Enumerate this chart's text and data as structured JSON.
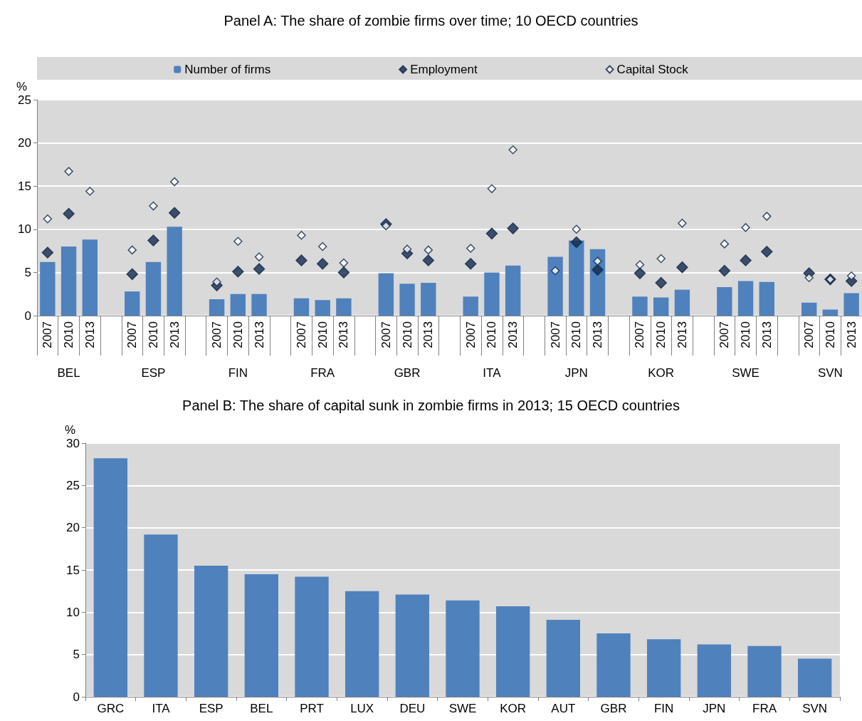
{
  "chart_data": [
    {
      "type": "bar",
      "title": "Panel A: The share of zombie firms over time; 10 OECD countries",
      "ylabel": "%",
      "categories": [
        "2007",
        "2010",
        "2013",
        null,
        "2007",
        "2010",
        "2013",
        null,
        "2007",
        "2010",
        "2013",
        null,
        "2007",
        "2010",
        "2013",
        null,
        "2007",
        "2010",
        "2013",
        null,
        "2007",
        "2010",
        "2013",
        null,
        "2007",
        "2010",
        "2013",
        null,
        "2007",
        "2010",
        "2013",
        null,
        "2007",
        "2010",
        "2013",
        null,
        "2007",
        "2010",
        "2013"
      ],
      "series": [
        {
          "name": "Number of firms",
          "type": "bar",
          "color": "#4f81bd",
          "values": [
            6.2,
            8.0,
            8.8,
            null,
            2.8,
            6.2,
            10.3,
            null,
            1.9,
            2.5,
            2.5,
            null,
            2.0,
            1.8,
            2.0,
            null,
            4.9,
            3.7,
            3.8,
            null,
            2.2,
            5.0,
            5.8,
            null,
            6.8,
            8.7,
            7.7,
            null,
            2.2,
            2.1,
            3.0,
            null,
            3.3,
            4.0,
            3.9,
            null,
            1.5,
            0.7,
            2.6
          ]
        },
        {
          "name": "Employment",
          "type": "scatter",
          "color": "#13294b",
          "values": [
            7.3,
            11.8,
            null,
            null,
            4.8,
            8.7,
            11.9,
            null,
            3.5,
            5.1,
            5.4,
            null,
            6.4,
            6.0,
            5.0,
            null,
            10.6,
            7.2,
            6.4,
            null,
            6.0,
            9.5,
            10.1,
            null,
            null,
            8.5,
            5.3,
            null,
            4.9,
            3.8,
            5.6,
            null,
            5.2,
            6.4,
            7.4,
            null,
            4.9,
            4.2,
            4.0
          ]
        },
        {
          "name": "Capital Stock",
          "type": "scatter",
          "color": "#ffffff",
          "values": [
            11.2,
            16.7,
            14.4,
            null,
            7.6,
            12.7,
            15.5,
            null,
            3.9,
            8.6,
            6.8,
            null,
            9.3,
            8.0,
            6.1,
            null,
            10.4,
            7.7,
            7.6,
            null,
            7.8,
            14.7,
            19.2,
            null,
            5.2,
            10.0,
            6.3,
            null,
            5.9,
            6.6,
            10.7,
            null,
            8.3,
            10.2,
            11.5,
            null,
            4.4,
            4.2,
            4.6
          ]
        }
      ],
      "annotations": [
        "BEL",
        "ESP",
        "FIN",
        "FRA",
        "GBR",
        "ITA",
        "JPN",
        "KOR",
        "SWE",
        "SVN"
      ],
      "ylim": [
        0,
        25
      ],
      "yticks": [
        0,
        5,
        10,
        15,
        20,
        25
      ],
      "grid": "y",
      "legend": "top",
      "marker": "diamond"
    },
    {
      "type": "bar",
      "title": "Panel B: The share of capital sunk in zombie firms in 2013; 15 OECD countries",
      "ylabel": "%",
      "categories": [
        "GRC",
        "ITA",
        "ESP",
        "BEL",
        "PRT",
        "LUX",
        "DEU",
        "SWE",
        "KOR",
        "AUT",
        "GBR",
        "FIN",
        "JPN",
        "FRA",
        "SVN"
      ],
      "values": [
        28.2,
        19.2,
        15.5,
        14.5,
        14.2,
        12.5,
        12.1,
        11.4,
        10.7,
        9.1,
        7.5,
        6.8,
        6.2,
        6.0,
        4.5
      ],
      "color": "#4f81bd",
      "ylim": [
        0,
        30
      ],
      "yticks": [
        0,
        5,
        10,
        15,
        20,
        25,
        30
      ],
      "grid": "y"
    }
  ]
}
